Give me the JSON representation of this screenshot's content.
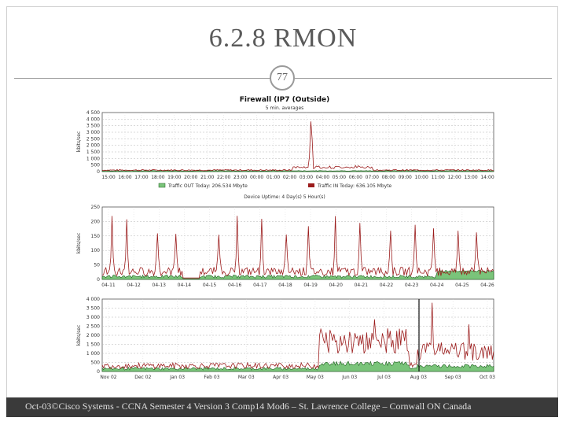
{
  "slide": {
    "title": "6.2.8  RMON",
    "page_number": "77",
    "footer": "Oct-03©Cisco Systems - CCNA Semester 4 Version 3 Comp14 Mod6 – St. Lawrence College – Cornwall ON Canada"
  },
  "charts": {
    "top": {
      "title": "Firewall (IP7 (Outside)",
      "subtitle": "5 min. averages",
      "ylabel": "kbits/sec",
      "yticks": [
        "4 500",
        "4 000",
        "3 500",
        "3 000",
        "2 500",
        "2 000",
        "1 500",
        "1 000",
        "500",
        "0"
      ],
      "xticks": [
        "15:00",
        "16:00",
        "17:00",
        "18:00",
        "19:00",
        "20:00",
        "21:00",
        "22:00",
        "23:00",
        "00:00",
        "01:00",
        "02:00",
        "03:00",
        "04:00",
        "05:00",
        "06:00",
        "07:00",
        "08:00",
        "09:00",
        "10:00",
        "11:00",
        "12:00",
        "13:00",
        "14:00"
      ],
      "legend_out": "Traffic OUT Today: 206.534 Mbyte",
      "legend_in": "Traffic IN Today: 636.105 Mbyte",
      "uptime": "Device Uptime: 4 Day(s) 5 Hour(s)"
    },
    "middle": {
      "ylabel": "kbits/sec",
      "yticks": [
        "250",
        "200",
        "150",
        "100",
        "50",
        "0"
      ],
      "xticks": [
        "04-11",
        "04-12",
        "04-13",
        "04-14",
        "04-15",
        "04-16",
        "04-17",
        "04-18",
        "04-19",
        "04-20",
        "04-21",
        "04-22",
        "04-23",
        "04-24",
        "04-25",
        "04-26"
      ]
    },
    "bottom": {
      "ylabel": "kbits/sec",
      "yticks": [
        "4 000",
        "3 500",
        "3 000",
        "2 500",
        "2 000",
        "1 500",
        "1 000",
        "500",
        "0"
      ],
      "xticks": [
        "Nov 02",
        "Dec 02",
        "Jan 03",
        "Feb 03",
        "Mar 03",
        "Apr 03",
        "May 03",
        "Jun 03",
        "Jul 03",
        "Aug 03",
        "Sep 03",
        "Oct 03"
      ]
    },
    "colors": {
      "in_line": "#9b1c1c",
      "out_fill": "#7ac47a",
      "out_line": "#1e5e1e"
    }
  }
}
